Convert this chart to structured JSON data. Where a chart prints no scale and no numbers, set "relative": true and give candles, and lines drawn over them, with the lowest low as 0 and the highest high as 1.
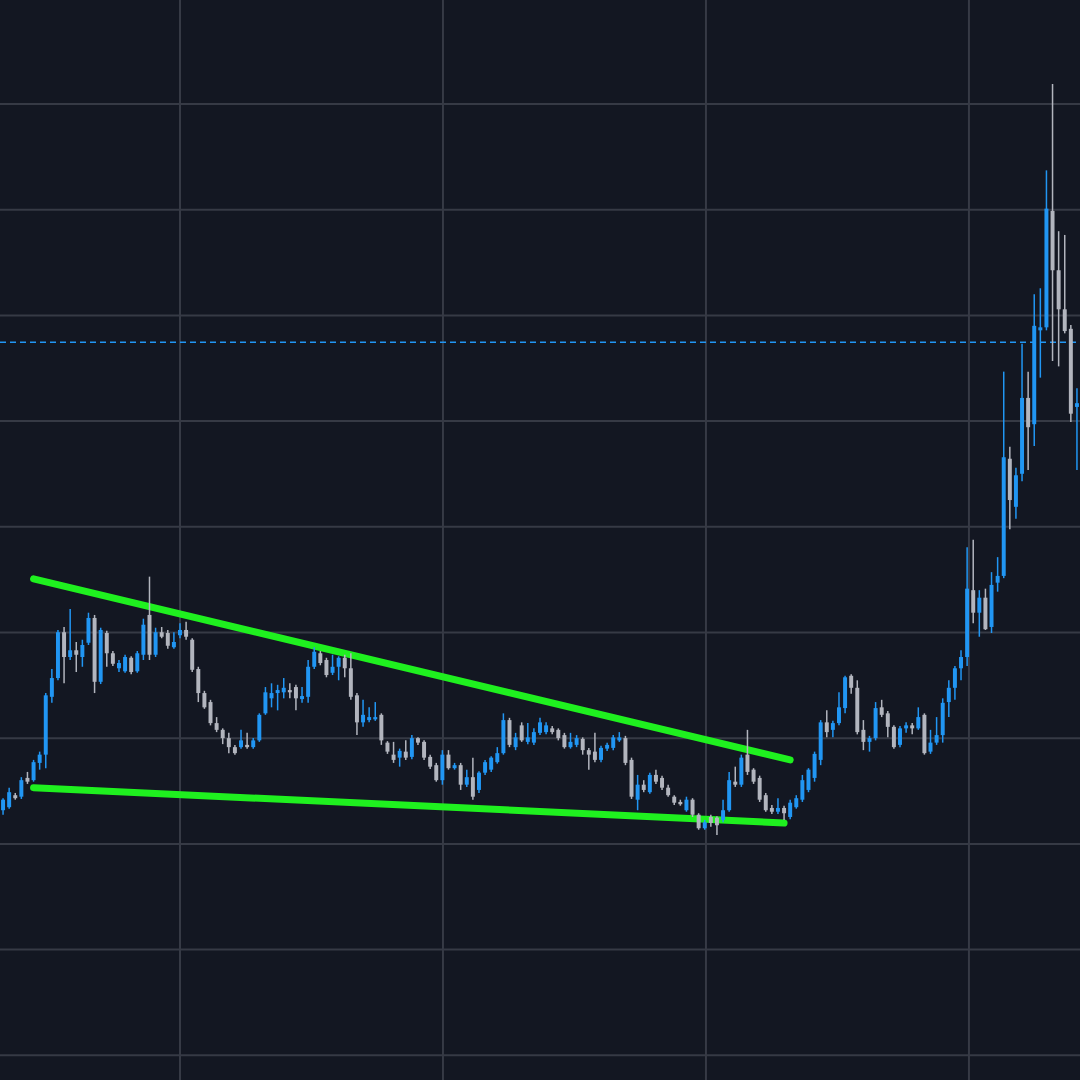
{
  "chart_data": {
    "type": "candlestick",
    "relative": true,
    "grid": true,
    "categories": [
      null,
      null,
      null,
      null,
      null,
      null,
      null,
      null,
      null,
      null,
      null,
      null,
      null,
      null,
      null,
      null,
      null,
      null,
      null,
      null,
      null,
      null,
      null,
      null,
      null,
      null,
      null,
      null,
      null,
      null,
      null,
      null,
      null,
      null,
      null,
      null,
      null,
      null,
      null,
      null,
      null,
      null,
      null,
      null,
      null,
      null,
      null,
      null,
      null,
      null,
      null,
      null,
      null,
      null,
      null,
      null,
      null,
      null,
      null,
      null,
      null,
      null,
      null,
      null,
      null,
      null,
      null,
      null,
      null,
      null,
      null,
      null,
      null,
      null,
      null,
      null,
      null,
      null,
      null,
      null,
      null,
      null,
      null,
      null,
      null,
      null,
      null,
      null,
      null,
      null,
      null,
      null,
      null,
      null,
      null,
      null,
      null,
      null,
      null,
      null,
      null,
      null,
      null,
      null,
      null,
      null,
      null,
      null,
      null,
      null,
      null,
      null,
      null,
      null,
      null,
      null,
      null,
      null,
      null,
      null,
      null,
      null,
      null,
      null,
      null,
      null,
      null,
      null,
      null,
      null,
      null,
      null,
      null,
      null,
      null,
      null,
      null,
      null,
      null,
      null,
      null,
      null,
      null,
      null,
      null,
      null,
      null,
      null,
      null,
      null,
      null,
      null,
      null,
      null,
      null,
      null,
      null,
      null,
      null,
      null,
      null,
      null,
      null,
      null,
      null,
      null,
      null,
      null,
      null,
      null,
      null,
      null,
      null,
      null,
      null,
      null,
      null
    ],
    "ohlc": [
      [
        0.033,
        0.049,
        0.027,
        0.047
      ],
      [
        0.037,
        0.063,
        0.035,
        0.057
      ],
      [
        0.053,
        0.056,
        0.047,
        0.049
      ],
      [
        0.051,
        0.077,
        0.048,
        0.073
      ],
      [
        0.076,
        0.084,
        0.068,
        0.071
      ],
      [
        0.073,
        0.1,
        0.071,
        0.097
      ],
      [
        0.096,
        0.111,
        0.087,
        0.107
      ],
      [
        0.107,
        0.189,
        0.089,
        0.186
      ],
      [
        0.184,
        0.221,
        0.176,
        0.209
      ],
      [
        0.209,
        0.273,
        0.206,
        0.27
      ],
      [
        0.27,
        0.277,
        0.202,
        0.237
      ],
      [
        0.237,
        0.301,
        0.233,
        0.246
      ],
      [
        0.246,
        0.257,
        0.217,
        0.24
      ],
      [
        0.237,
        0.26,
        0.224,
        0.253
      ],
      [
        0.256,
        0.296,
        0.253,
        0.289
      ],
      [
        0.289,
        0.293,
        0.189,
        0.204
      ],
      [
        0.204,
        0.276,
        0.201,
        0.273
      ],
      [
        0.269,
        0.272,
        0.224,
        0.242
      ],
      [
        0.242,
        0.245,
        0.225,
        0.228
      ],
      [
        0.222,
        0.233,
        0.217,
        0.229
      ],
      [
        0.218,
        0.24,
        0.216,
        0.237
      ],
      [
        0.236,
        0.238,
        0.214,
        0.217
      ],
      [
        0.218,
        0.245,
        0.216,
        0.242
      ],
      [
        0.24,
        0.288,
        0.233,
        0.28
      ],
      [
        0.293,
        0.344,
        0.233,
        0.24
      ],
      [
        0.24,
        0.276,
        0.237,
        0.27
      ],
      [
        0.27,
        0.277,
        0.262,
        0.264
      ],
      [
        0.269,
        0.273,
        0.248,
        0.252
      ],
      [
        0.25,
        0.27,
        0.248,
        0.257
      ],
      [
        0.266,
        0.282,
        0.262,
        0.273
      ],
      [
        0.273,
        0.284,
        0.26,
        0.264
      ],
      [
        0.26,
        0.262,
        0.217,
        0.22
      ],
      [
        0.221,
        0.224,
        0.177,
        0.189
      ],
      [
        0.189,
        0.192,
        0.168,
        0.17
      ],
      [
        0.177,
        0.18,
        0.146,
        0.149
      ],
      [
        0.149,
        0.157,
        0.137,
        0.14
      ],
      [
        0.14,
        0.142,
        0.121,
        0.129
      ],
      [
        0.129,
        0.136,
        0.109,
        0.117
      ],
      [
        0.117,
        0.12,
        0.107,
        0.109
      ],
      [
        0.117,
        0.14,
        0.115,
        0.126
      ],
      [
        0.12,
        0.136,
        0.115,
        0.117
      ],
      [
        0.117,
        0.129,
        0.115,
        0.126
      ],
      [
        0.126,
        0.162,
        0.124,
        0.16
      ],
      [
        0.162,
        0.197,
        0.16,
        0.19
      ],
      [
        0.182,
        0.202,
        0.17,
        0.189
      ],
      [
        0.189,
        0.2,
        0.166,
        0.193
      ],
      [
        0.19,
        0.209,
        0.182,
        0.196
      ],
      [
        0.193,
        0.202,
        0.182,
        0.19
      ],
      [
        0.197,
        0.2,
        0.166,
        0.182
      ],
      [
        0.181,
        0.197,
        0.176,
        0.185
      ],
      [
        0.184,
        0.233,
        0.176,
        0.224
      ],
      [
        0.224,
        0.25,
        0.221,
        0.244
      ],
      [
        0.242,
        0.245,
        0.226,
        0.229
      ],
      [
        0.233,
        0.236,
        0.21,
        0.213
      ],
      [
        0.216,
        0.24,
        0.213,
        0.224
      ],
      [
        0.224,
        0.238,
        0.206,
        0.236
      ],
      [
        0.236,
        0.24,
        0.21,
        0.222
      ],
      [
        0.222,
        0.242,
        0.18,
        0.184
      ],
      [
        0.186,
        0.189,
        0.133,
        0.15
      ],
      [
        0.15,
        0.18,
        0.144,
        0.16
      ],
      [
        0.153,
        0.17,
        0.15,
        0.157
      ],
      [
        0.154,
        0.177,
        0.152,
        0.157
      ],
      [
        0.16,
        0.162,
        0.12,
        0.126
      ],
      [
        0.123,
        0.125,
        0.108,
        0.111
      ],
      [
        0.107,
        0.124,
        0.096,
        0.1
      ],
      [
        0.103,
        0.115,
        0.091,
        0.112
      ],
      [
        0.111,
        0.126,
        0.1,
        0.103
      ],
      [
        0.104,
        0.133,
        0.101,
        0.129
      ],
      [
        0.129,
        0.13,
        0.12,
        0.123
      ],
      [
        0.124,
        0.126,
        0.1,
        0.103
      ],
      [
        0.104,
        0.107,
        0.088,
        0.091
      ],
      [
        0.093,
        0.096,
        0.071,
        0.073
      ],
      [
        0.073,
        0.113,
        0.067,
        0.107
      ],
      [
        0.107,
        0.113,
        0.087,
        0.089
      ],
      [
        0.089,
        0.096,
        0.087,
        0.093
      ],
      [
        0.093,
        0.096,
        0.06,
        0.067
      ],
      [
        0.067,
        0.087,
        0.064,
        0.077
      ],
      [
        0.077,
        0.103,
        0.047,
        0.051
      ],
      [
        0.06,
        0.085,
        0.056,
        0.083
      ],
      [
        0.083,
        0.1,
        0.08,
        0.097
      ],
      [
        0.087,
        0.105,
        0.084,
        0.103
      ],
      [
        0.097,
        0.117,
        0.095,
        0.109
      ],
      [
        0.109,
        0.162,
        0.107,
        0.153
      ],
      [
        0.153,
        0.156,
        0.117,
        0.12
      ],
      [
        0.117,
        0.136,
        0.113,
        0.13
      ],
      [
        0.146,
        0.15,
        0.124,
        0.126
      ],
      [
        0.124,
        0.149,
        0.121,
        0.13
      ],
      [
        0.123,
        0.142,
        0.12,
        0.137
      ],
      [
        0.136,
        0.156,
        0.133,
        0.15
      ],
      [
        0.137,
        0.15,
        0.134,
        0.146
      ],
      [
        0.142,
        0.145,
        0.134,
        0.137
      ],
      [
        0.14,
        0.142,
        0.126,
        0.129
      ],
      [
        0.133,
        0.136,
        0.115,
        0.117
      ],
      [
        0.117,
        0.136,
        0.115,
        0.124
      ],
      [
        0.12,
        0.133,
        0.117,
        0.129
      ],
      [
        0.128,
        0.13,
        0.107,
        0.113
      ],
      [
        0.113,
        0.116,
        0.087,
        0.107
      ],
      [
        0.111,
        0.136,
        0.097,
        0.1
      ],
      [
        0.1,
        0.119,
        0.097,
        0.116
      ],
      [
        0.115,
        0.123,
        0.112,
        0.12
      ],
      [
        0.116,
        0.133,
        0.113,
        0.13
      ],
      [
        0.126,
        0.137,
        0.124,
        0.13
      ],
      [
        0.129,
        0.132,
        0.093,
        0.096
      ],
      [
        0.1,
        0.103,
        0.048,
        0.051
      ],
      [
        0.047,
        0.08,
        0.033,
        0.067
      ],
      [
        0.067,
        0.073,
        0.057,
        0.06
      ],
      [
        0.057,
        0.083,
        0.055,
        0.08
      ],
      [
        0.08,
        0.087,
        0.068,
        0.071
      ],
      [
        0.076,
        0.079,
        0.06,
        0.063
      ],
      [
        0.063,
        0.067,
        0.051,
        0.053
      ],
      [
        0.051,
        0.053,
        0.04,
        0.043
      ],
      [
        0.044,
        0.047,
        0.039,
        0.041
      ],
      [
        0.033,
        0.051,
        0.031,
        0.047
      ],
      [
        0.047,
        0.049,
        0.024,
        0.027
      ],
      [
        0.027,
        0.029,
        0.007,
        0.009
      ],
      [
        0.009,
        0.02,
        0.007,
        0.017
      ],
      [
        0.024,
        0.027,
        0.011,
        0.016
      ],
      [
        0.023,
        0.025,
        0,
        0.013
      ],
      [
        0.02,
        0.047,
        0.017,
        0.033
      ],
      [
        0.033,
        0.084,
        0.031,
        0.073
      ],
      [
        0.071,
        0.091,
        0.064,
        0.067
      ],
      [
        0.067,
        0.107,
        0.064,
        0.103
      ],
      [
        0.107,
        0.14,
        0.08,
        0.084
      ],
      [
        0.087,
        0.089,
        0.068,
        0.071
      ],
      [
        0.076,
        0.079,
        0.044,
        0.047
      ],
      [
        0.053,
        0.056,
        0.031,
        0.033
      ],
      [
        0.036,
        0.04,
        0.028,
        0.031
      ],
      [
        0.031,
        0.049,
        0.028,
        0.036
      ],
      [
        0.036,
        0.039,
        0.02,
        0.029
      ],
      [
        0.024,
        0.047,
        0.021,
        0.043
      ],
      [
        0.037,
        0.053,
        0.035,
        0.049
      ],
      [
        0.047,
        0.08,
        0.044,
        0.073
      ],
      [
        0.06,
        0.089,
        0.057,
        0.087
      ],
      [
        0.076,
        0.111,
        0.071,
        0.108
      ],
      [
        0.1,
        0.153,
        0.093,
        0.15
      ],
      [
        0.15,
        0.166,
        0.13,
        0.137
      ],
      [
        0.14,
        0.152,
        0.13,
        0.149
      ],
      [
        0.149,
        0.19,
        0.146,
        0.17
      ],
      [
        0.169,
        0.212,
        0.162,
        0.21
      ],
      [
        0.212,
        0.214,
        0.188,
        0.196
      ],
      [
        0.196,
        0.206,
        0.134,
        0.137
      ],
      [
        0.14,
        0.153,
        0.113,
        0.124
      ],
      [
        0.124,
        0.132,
        0.111,
        0.129
      ],
      [
        0.129,
        0.177,
        0.126,
        0.169
      ],
      [
        0.17,
        0.18,
        0.157,
        0.16
      ],
      [
        0.162,
        0.165,
        0.13,
        0.144
      ],
      [
        0.144,
        0.146,
        0.115,
        0.117
      ],
      [
        0.12,
        0.145,
        0.117,
        0.142
      ],
      [
        0.142,
        0.15,
        0.136,
        0.146
      ],
      [
        0.146,
        0.149,
        0.134,
        0.142
      ],
      [
        0.142,
        0.17,
        0.14,
        0.157
      ],
      [
        0.16,
        0.162,
        0.107,
        0.109
      ],
      [
        0.111,
        0.14,
        0.108,
        0.123
      ],
      [
        0.123,
        0.157,
        0.12,
        0.133
      ],
      [
        0.133,
        0.182,
        0.123,
        0.176
      ],
      [
        0.177,
        0.206,
        0.157,
        0.196
      ],
      [
        0.196,
        0.225,
        0.18,
        0.222
      ],
      [
        0.222,
        0.246,
        0.206,
        0.237
      ],
      [
        0.237,
        0.383,
        0.225,
        0.328
      ],
      [
        0.326,
        0.393,
        0.282,
        0.296
      ],
      [
        0.296,
        0.326,
        0.264,
        0.316
      ],
      [
        0.316,
        0.328,
        0.273,
        0.274
      ],
      [
        0.277,
        0.35,
        0.269,
        0.333
      ],
      [
        0.336,
        0.37,
        0.324,
        0.345
      ],
      [
        0.345,
        0.617,
        0.342,
        0.503
      ],
      [
        0.501,
        0.517,
        0.407,
        0.446
      ],
      [
        0.437,
        0.489,
        0.421,
        0.479
      ],
      [
        0.481,
        0.654,
        0.471,
        0.582
      ],
      [
        0.582,
        0.617,
        0.486,
        0.543
      ],
      [
        0.547,
        0.72,
        0.518,
        0.678
      ],
      [
        0.672,
        0.728,
        0.609,
        0.676
      ],
      [
        0.676,
        0.885,
        0.672,
        0.834
      ],
      [
        0.831,
        1,
        0.631,
        0.752
      ],
      [
        0.752,
        0.804,
        0.624,
        0.7
      ],
      [
        0.7,
        0.799,
        0.668,
        0.671
      ],
      [
        0.674,
        0.679,
        0.55,
        0.561
      ],
      [
        0.57,
        0.595,
        0.486,
        0.575
      ]
    ],
    "colors": [
      "#2196f3",
      "#2196f3",
      "#b2b5be",
      "#2196f3",
      "#b2b5be",
      "#2196f3",
      "#2196f3",
      "#2196f3",
      "#2196f3",
      "#2196f3",
      "#b2b5be",
      "#2196f3",
      "#b2b5be",
      "#2196f3",
      "#2196f3",
      "#b2b5be",
      "#2196f3",
      "#b2b5be",
      "#b2b5be",
      "#2196f3",
      "#2196f3",
      "#b2b5be",
      "#2196f3",
      "#2196f3",
      "#b2b5be",
      "#2196f3",
      "#b2b5be",
      "#b2b5be",
      "#2196f3",
      "#2196f3",
      "#b2b5be",
      "#b2b5be",
      "#b2b5be",
      "#b2b5be",
      "#b2b5be",
      "#b2b5be",
      "#b2b5be",
      "#b2b5be",
      "#b2b5be",
      "#2196f3",
      "#b2b5be",
      "#2196f3",
      "#2196f3",
      "#2196f3",
      "#2196f3",
      "#2196f3",
      "#2196f3",
      "#b2b5be",
      "#b2b5be",
      "#2196f3",
      "#2196f3",
      "#2196f3",
      "#b2b5be",
      "#b2b5be",
      "#2196f3",
      "#2196f3",
      "#b2b5be",
      "#b2b5be",
      "#b2b5be",
      "#2196f3",
      "#2196f3",
      "#2196f3",
      "#b2b5be",
      "#b2b5be",
      "#b2b5be",
      "#2196f3",
      "#b2b5be",
      "#2196f3",
      "#b2b5be",
      "#b2b5be",
      "#b2b5be",
      "#b2b5be",
      "#2196f3",
      "#b2b5be",
      "#2196f3",
      "#b2b5be",
      "#2196f3",
      "#b2b5be",
      "#2196f3",
      "#2196f3",
      "#2196f3",
      "#2196f3",
      "#2196f3",
      "#b2b5be",
      "#2196f3",
      "#b2b5be",
      "#2196f3",
      "#2196f3",
      "#2196f3",
      "#2196f3",
      "#b2b5be",
      "#b2b5be",
      "#b2b5be",
      "#2196f3",
      "#2196f3",
      "#b2b5be",
      "#b2b5be",
      "#b2b5be",
      "#2196f3",
      "#2196f3",
      "#2196f3",
      "#2196f3",
      "#b2b5be",
      "#b2b5be",
      "#2196f3",
      "#b2b5be",
      "#2196f3",
      "#b2b5be",
      "#b2b5be",
      "#b2b5be",
      "#b2b5be",
      "#b2b5be",
      "#2196f3",
      "#b2b5be",
      "#b2b5be",
      "#2196f3",
      "#b2b5be",
      "#b2b5be",
      "#2196f3",
      "#2196f3",
      "#b2b5be",
      "#2196f3",
      "#b2b5be",
      "#b2b5be",
      "#b2b5be",
      "#b2b5be",
      "#b2b5be",
      "#2196f3",
      "#b2b5be",
      "#2196f3",
      "#2196f3",
      "#2196f3",
      "#2196f3",
      "#2196f3",
      "#2196f3",
      "#b2b5be",
      "#2196f3",
      "#2196f3",
      "#2196f3",
      "#b2b5be",
      "#b2b5be",
      "#b2b5be",
      "#2196f3",
      "#2196f3",
      "#b2b5be",
      "#b2b5be",
      "#b2b5be",
      "#2196f3",
      "#2196f3",
      "#b2b5be",
      "#2196f3",
      "#b2b5be",
      "#2196f3",
      "#2196f3",
      "#2196f3",
      "#2196f3",
      "#2196f3",
      "#2196f3",
      "#2196f3",
      "#b2b5be",
      "#2196f3",
      "#b2b5be",
      "#2196f3",
      "#2196f3",
      "#2196f3",
      "#b2b5be",
      "#2196f3",
      "#2196f3",
      "#b2b5be",
      "#2196f3",
      "#2196f3",
      "#2196f3",
      "#b2b5be",
      "#b2b5be",
      "#b2b5be",
      "#b2b5be",
      "#2196f3"
    ],
    "series": [
      {
        "type": "line",
        "color": "#1ff01f",
        "values": [
          null,
          null,
          null,
          null,
          null,
          0.341,
          null,
          null,
          null,
          null,
          null,
          null,
          null,
          null,
          null,
          null,
          null,
          null,
          null,
          null,
          null,
          null,
          null,
          null,
          null,
          null,
          null,
          null,
          null,
          null,
          null,
          null,
          null,
          null,
          null,
          null,
          null,
          null,
          null,
          null,
          null,
          null,
          null,
          null,
          null,
          null,
          null,
          null,
          null,
          null,
          null,
          null,
          null,
          null,
          null,
          null,
          null,
          null,
          null,
          null,
          null,
          null,
          null,
          null,
          null,
          null,
          null,
          null,
          null,
          null,
          null,
          null,
          null,
          null,
          null,
          null,
          null,
          null,
          null,
          null,
          null,
          null,
          null,
          null,
          null,
          null,
          null,
          null,
          null,
          null,
          null,
          null,
          null,
          null,
          null,
          null,
          null,
          null,
          null,
          null,
          null,
          null,
          null,
          null,
          null,
          null,
          null,
          null,
          null,
          null,
          null,
          null,
          null,
          null,
          null,
          null,
          null,
          null,
          null,
          null,
          null,
          null,
          null,
          null,
          null,
          null,
          null,
          null,
          null,
          0.1,
          null,
          null,
          null,
          null,
          null,
          null,
          null,
          null,
          null,
          null,
          null,
          null,
          null,
          null,
          null,
          null,
          null,
          null,
          null,
          null,
          null,
          null,
          null,
          null,
          null,
          null,
          null,
          null,
          null,
          null,
          null,
          null,
          null,
          null,
          null,
          null,
          null,
          null,
          null,
          null,
          null,
          null,
          null,
          null,
          null,
          null,
          null
        ]
      },
      {
        "type": "line",
        "color": "#1ff01f",
        "values": [
          null,
          null,
          null,
          null,
          null,
          0.063,
          null,
          null,
          null,
          null,
          null,
          null,
          null,
          null,
          null,
          null,
          null,
          null,
          null,
          null,
          null,
          null,
          null,
          null,
          null,
          null,
          null,
          null,
          null,
          null,
          null,
          null,
          null,
          null,
          null,
          null,
          null,
          null,
          null,
          null,
          null,
          null,
          null,
          null,
          null,
          null,
          null,
          null,
          null,
          null,
          null,
          null,
          null,
          null,
          null,
          null,
          null,
          null,
          null,
          null,
          null,
          null,
          null,
          null,
          null,
          null,
          null,
          null,
          null,
          null,
          null,
          null,
          null,
          null,
          null,
          null,
          null,
          null,
          null,
          null,
          null,
          null,
          null,
          null,
          null,
          null,
          null,
          null,
          null,
          null,
          null,
          null,
          null,
          null,
          null,
          null,
          null,
          null,
          null,
          null,
          null,
          null,
          null,
          null,
          null,
          null,
          null,
          null,
          null,
          null,
          null,
          null,
          null,
          null,
          null,
          null,
          null,
          null,
          null,
          null,
          null,
          null,
          null,
          null,
          null,
          null,
          null,
          null,
          0.016,
          null,
          null,
          null,
          null,
          null,
          null,
          null,
          null,
          null,
          null,
          null,
          null,
          null,
          null,
          null,
          null,
          null,
          null,
          null,
          null,
          null,
          null,
          null,
          null,
          null,
          null,
          null,
          null,
          null,
          null,
          null,
          null,
          null,
          null,
          null,
          null,
          null,
          null,
          null,
          null,
          null,
          null,
          null,
          null,
          null,
          null,
          null,
          null
        ]
      }
    ],
    "ref_lines": [
      {
        "axis": "y",
        "value": 0.656,
        "color": "#2196f3",
        "line_style": "dashed"
      }
    ]
  }
}
